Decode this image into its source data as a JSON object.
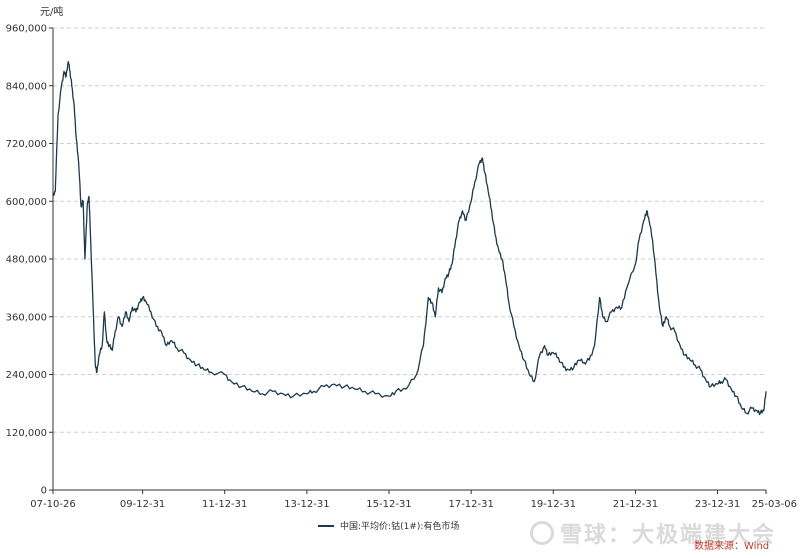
{
  "chart_data": {
    "type": "line",
    "unit_label": "元/吨",
    "y_ticks": [
      0,
      120000,
      240000,
      360000,
      480000,
      600000,
      720000,
      840000,
      960000
    ],
    "y_tick_labels": [
      "0",
      "120,000",
      "240,000",
      "360,000",
      "480,000",
      "600,000",
      "720,000",
      "840,000",
      "960,000"
    ],
    "x_tick_labels": [
      "07-10-26",
      "09-12-31",
      "11-12-31",
      "13-12-31",
      "15-12-31",
      "17-12-31",
      "19-12-31",
      "21-12-31",
      "23-12-31",
      "25-03-06"
    ],
    "x_ticks": [
      "2007-10-26",
      "2009-12-31",
      "2011-12-31",
      "2013-12-31",
      "2015-12-31",
      "2017-12-31",
      "2019-12-31",
      "2021-12-31",
      "2023-12-31",
      "2025-03-06"
    ],
    "ylim": [
      0,
      960000
    ],
    "grid": true,
    "series": [
      {
        "name": "中国:平均价:钴(1#):有色市场",
        "color": "#1d3a4b",
        "points": [
          [
            "2007-10-26",
            610000
          ],
          [
            "2007-11-15",
            620000
          ],
          [
            "2007-12-10",
            780000
          ],
          [
            "2008-01-10",
            840000
          ],
          [
            "2008-02-01",
            870000
          ],
          [
            "2008-02-20",
            860000
          ],
          [
            "2008-03-10",
            890000
          ],
          [
            "2008-03-25",
            870000
          ],
          [
            "2008-04-10",
            840000
          ],
          [
            "2008-05-01",
            800000
          ],
          [
            "2008-05-20",
            730000
          ],
          [
            "2008-06-10",
            680000
          ],
          [
            "2008-07-01",
            590000
          ],
          [
            "2008-07-20",
            600000
          ],
          [
            "2008-08-05",
            480000
          ],
          [
            "2008-08-25",
            590000
          ],
          [
            "2008-09-10",
            610000
          ],
          [
            "2008-09-25",
            520000
          ],
          [
            "2008-10-15",
            390000
          ],
          [
            "2008-11-05",
            260000
          ],
          [
            "2008-11-20",
            245000
          ],
          [
            "2008-12-10",
            280000
          ],
          [
            "2009-01-05",
            300000
          ],
          [
            "2009-01-25",
            370000
          ],
          [
            "2009-02-15",
            310000
          ],
          [
            "2009-03-10",
            300000
          ],
          [
            "2009-04-05",
            290000
          ],
          [
            "2009-05-01",
            330000
          ],
          [
            "2009-06-01",
            360000
          ],
          [
            "2009-07-01",
            340000
          ],
          [
            "2009-08-01",
            370000
          ],
          [
            "2009-09-01",
            350000
          ],
          [
            "2009-10-01",
            380000
          ],
          [
            "2009-11-01",
            370000
          ],
          [
            "2009-12-01",
            390000
          ],
          [
            "2009-12-31",
            400000
          ],
          [
            "2010-02-01",
            390000
          ],
          [
            "2010-03-15",
            370000
          ],
          [
            "2010-05-01",
            340000
          ],
          [
            "2010-06-15",
            330000
          ],
          [
            "2010-08-01",
            300000
          ],
          [
            "2010-09-15",
            310000
          ],
          [
            "2010-11-01",
            295000
          ],
          [
            "2011-01-01",
            285000
          ],
          [
            "2011-03-01",
            270000
          ],
          [
            "2011-05-01",
            260000
          ],
          [
            "2011-07-01",
            250000
          ],
          [
            "2011-09-01",
            245000
          ],
          [
            "2011-12-31",
            240000
          ],
          [
            "2012-03-01",
            225000
          ],
          [
            "2012-06-01",
            215000
          ],
          [
            "2012-09-01",
            205000
          ],
          [
            "2012-12-01",
            200000
          ],
          [
            "2013-03-01",
            205000
          ],
          [
            "2013-06-01",
            200000
          ],
          [
            "2013-09-01",
            195000
          ],
          [
            "2013-12-31",
            200000
          ],
          [
            "2014-03-01",
            205000
          ],
          [
            "2014-06-01",
            215000
          ],
          [
            "2014-09-01",
            220000
          ],
          [
            "2014-12-01",
            215000
          ],
          [
            "2015-03-01",
            210000
          ],
          [
            "2015-06-01",
            205000
          ],
          [
            "2015-09-01",
            200000
          ],
          [
            "2015-12-31",
            195000
          ],
          [
            "2016-03-01",
            205000
          ],
          [
            "2016-06-01",
            210000
          ],
          [
            "2016-09-01",
            240000
          ],
          [
            "2016-11-01",
            300000
          ],
          [
            "2016-12-15",
            400000
          ],
          [
            "2017-01-15",
            390000
          ],
          [
            "2017-02-15",
            360000
          ],
          [
            "2017-03-15",
            420000
          ],
          [
            "2017-04-15",
            410000
          ],
          [
            "2017-05-15",
            440000
          ],
          [
            "2017-06-15",
            450000
          ],
          [
            "2017-07-15",
            470000
          ],
          [
            "2017-08-15",
            520000
          ],
          [
            "2017-09-15",
            560000
          ],
          [
            "2017-10-15",
            580000
          ],
          [
            "2017-11-15",
            560000
          ],
          [
            "2017-12-31",
            600000
          ],
          [
            "2018-02-01",
            640000
          ],
          [
            "2018-03-15",
            680000
          ],
          [
            "2018-04-10",
            690000
          ],
          [
            "2018-05-01",
            660000
          ],
          [
            "2018-06-01",
            620000
          ],
          [
            "2018-07-01",
            580000
          ],
          [
            "2018-08-01",
            530000
          ],
          [
            "2018-09-01",
            500000
          ],
          [
            "2018-10-01",
            480000
          ],
          [
            "2018-11-01",
            440000
          ],
          [
            "2018-12-01",
            390000
          ],
          [
            "2019-01-15",
            340000
          ],
          [
            "2019-03-01",
            300000
          ],
          [
            "2019-04-15",
            270000
          ],
          [
            "2019-06-01",
            240000
          ],
          [
            "2019-07-15",
            225000
          ],
          [
            "2019-09-01",
            280000
          ],
          [
            "2019-10-15",
            300000
          ],
          [
            "2019-11-15",
            280000
          ],
          [
            "2019-12-31",
            285000
          ],
          [
            "2020-02-15",
            275000
          ],
          [
            "2020-04-01",
            255000
          ],
          [
            "2020-05-15",
            250000
          ],
          [
            "2020-07-01",
            255000
          ],
          [
            "2020-08-15",
            270000
          ],
          [
            "2020-10-01",
            265000
          ],
          [
            "2020-11-15",
            270000
          ],
          [
            "2021-01-01",
            300000
          ],
          [
            "2021-02-15",
            400000
          ],
          [
            "2021-03-15",
            360000
          ],
          [
            "2021-04-15",
            350000
          ],
          [
            "2021-06-01",
            370000
          ],
          [
            "2021-07-15",
            380000
          ],
          [
            "2021-09-01",
            380000
          ],
          [
            "2021-10-15",
            420000
          ],
          [
            "2021-12-31",
            470000
          ],
          [
            "2022-02-01",
            520000
          ],
          [
            "2022-03-15",
            560000
          ],
          [
            "2022-04-10",
            580000
          ],
          [
            "2022-05-01",
            560000
          ],
          [
            "2022-06-01",
            520000
          ],
          [
            "2022-07-01",
            450000
          ],
          [
            "2022-08-01",
            380000
          ],
          [
            "2022-09-01",
            340000
          ],
          [
            "2022-10-01",
            360000
          ],
          [
            "2022-11-01",
            340000
          ],
          [
            "2022-12-15",
            330000
          ],
          [
            "2023-02-01",
            300000
          ],
          [
            "2023-03-15",
            280000
          ],
          [
            "2023-05-01",
            270000
          ],
          [
            "2023-06-15",
            260000
          ],
          [
            "2023-08-01",
            250000
          ],
          [
            "2023-09-15",
            230000
          ],
          [
            "2023-11-01",
            215000
          ],
          [
            "2023-12-31",
            220000
          ],
          [
            "2024-02-01",
            225000
          ],
          [
            "2024-03-15",
            230000
          ],
          [
            "2024-05-01",
            210000
          ],
          [
            "2024-06-15",
            195000
          ],
          [
            "2024-08-01",
            170000
          ],
          [
            "2024-09-15",
            160000
          ],
          [
            "2024-11-01",
            170000
          ],
          [
            "2024-12-15",
            165000
          ],
          [
            "2025-01-15",
            160000
          ],
          [
            "2025-02-15",
            165000
          ],
          [
            "2025-03-06",
            205000
          ]
        ]
      }
    ]
  },
  "legend": {
    "label": "中国:平均价:钴(1#):有色市场"
  },
  "footer": {
    "source": "数据来源：Wind",
    "watermark": "雪球：大极端建大会"
  }
}
